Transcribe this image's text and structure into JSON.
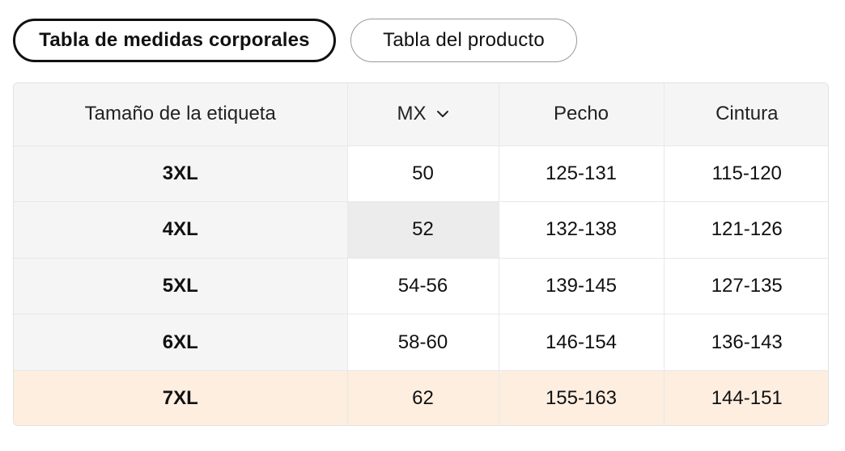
{
  "tabs": {
    "body_chart": "Tabla de medidas corporales",
    "product_chart": "Tabla del producto"
  },
  "table": {
    "headers": {
      "size": "Tamaño de la etiqueta",
      "region": "MX",
      "chest": "Pecho",
      "waist": "Cintura"
    },
    "rows": [
      {
        "size": "3XL",
        "mx": "50",
        "chest": "125-131",
        "waist": "115-120"
      },
      {
        "size": "4XL",
        "mx": "52",
        "chest": "132-138",
        "waist": "121-126"
      },
      {
        "size": "5XL",
        "mx": "54-56",
        "chest": "139-145",
        "waist": "127-135"
      },
      {
        "size": "6XL",
        "mx": "58-60",
        "chest": "146-154",
        "waist": "136-143"
      },
      {
        "size": "7XL",
        "mx": "62",
        "chest": "155-163",
        "waist": "144-151"
      }
    ],
    "highlighted_row": "7XL",
    "colors": {
      "header_bg": "#f5f5f5",
      "highlight_bg": "#fdeee0",
      "hover_cell_bg": "#ececec"
    },
    "region_dropdown_icon": "chevron-down-icon"
  }
}
